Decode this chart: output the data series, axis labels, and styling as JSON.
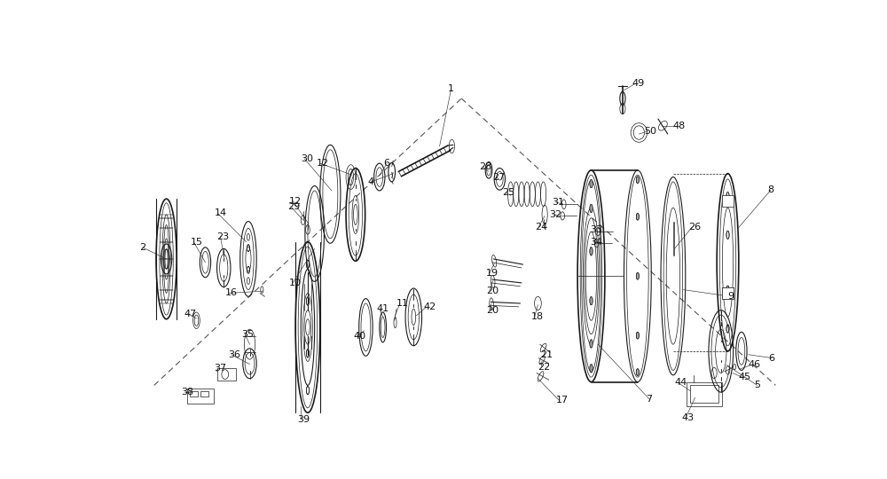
{
  "bg_color": "#ffffff",
  "line_color": "#1a1a1a",
  "fig_width": 10.0,
  "fig_height": 5.4,
  "dpi": 100
}
